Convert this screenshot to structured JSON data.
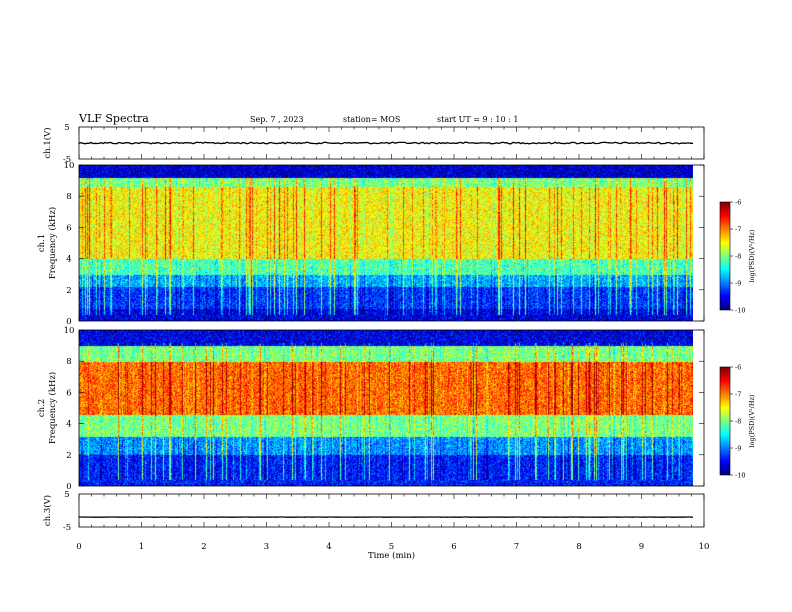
{
  "header": {
    "title": "VLF Spectra",
    "date": "Sep. 7 , 2023",
    "station": "station= MOS",
    "start_ut": "start  UT =   9 : 10 : 1"
  },
  "chart_data": [
    {
      "id": "ch1_voltage",
      "type": "line",
      "ylabel": "ch.1(V)",
      "yticks": [
        "5",
        "-5"
      ],
      "ylim": [
        -5,
        5
      ],
      "xlim": [
        0,
        10
      ],
      "value_approx": 0
    },
    {
      "id": "ch1_spectrogram",
      "type": "heatmap",
      "ylabel": "ch.1\nFrequency (kHz)",
      "yticks": [
        "0",
        "2",
        "4",
        "6",
        "8",
        "10"
      ],
      "ylim": [
        0,
        10
      ],
      "xlim": [
        0,
        9.85
      ],
      "colorbar": {
        "label": "log(PSD)(V²/Hz)",
        "range": [
          -10,
          -6
        ],
        "ticks": [
          "-6",
          "-7",
          "-8",
          "-9",
          "-10"
        ]
      },
      "bands": [
        {
          "f": [
            0,
            0.8
          ],
          "level": -9.6
        },
        {
          "f": [
            0.8,
            2.2
          ],
          "level": -9.3
        },
        {
          "f": [
            2.2,
            3.0
          ],
          "level": -8.8
        },
        {
          "f": [
            3.0,
            4.0
          ],
          "level": -8.2
        },
        {
          "f": [
            4.0,
            8.6
          ],
          "level": -7.5
        },
        {
          "f": [
            8.6,
            9.2
          ],
          "level": -8.0
        },
        {
          "f": [
            9.2,
            10
          ],
          "level": -9.7
        }
      ]
    },
    {
      "id": "ch2_spectrogram",
      "type": "heatmap",
      "ylabel": "ch.2\nFrequency (kHz)",
      "yticks": [
        "0",
        "2",
        "4",
        "6",
        "8",
        "10"
      ],
      "ylim": [
        0,
        10
      ],
      "xlim": [
        0,
        9.85
      ],
      "colorbar": {
        "label": "log(PSD)(V²/Hz)",
        "range": [
          -10,
          -6
        ],
        "ticks": [
          "-6",
          "-7",
          "-8",
          "-9",
          "-10"
        ]
      },
      "bands": [
        {
          "f": [
            0,
            2.0
          ],
          "level": -9.4
        },
        {
          "f": [
            2.0,
            3.2
          ],
          "level": -8.9
        },
        {
          "f": [
            3.2,
            4.6
          ],
          "level": -8.0
        },
        {
          "f": [
            4.6,
            8.0
          ],
          "level": -6.9
        },
        {
          "f": [
            8.0,
            9.0
          ],
          "level": -8.0
        },
        {
          "f": [
            9.0,
            10
          ],
          "level": -9.6
        }
      ]
    },
    {
      "id": "ch3_voltage",
      "type": "line",
      "ylabel": "ch.3(V)",
      "yticks": [
        "5",
        "-5"
      ],
      "ylim": [
        -5,
        5
      ],
      "xlim": [
        0,
        10
      ],
      "value_approx": -2,
      "xlabel": "Time  (min)",
      "xticks": [
        "0",
        "1",
        "2",
        "3",
        "4",
        "5",
        "6",
        "7",
        "8",
        "9",
        "10"
      ]
    }
  ]
}
